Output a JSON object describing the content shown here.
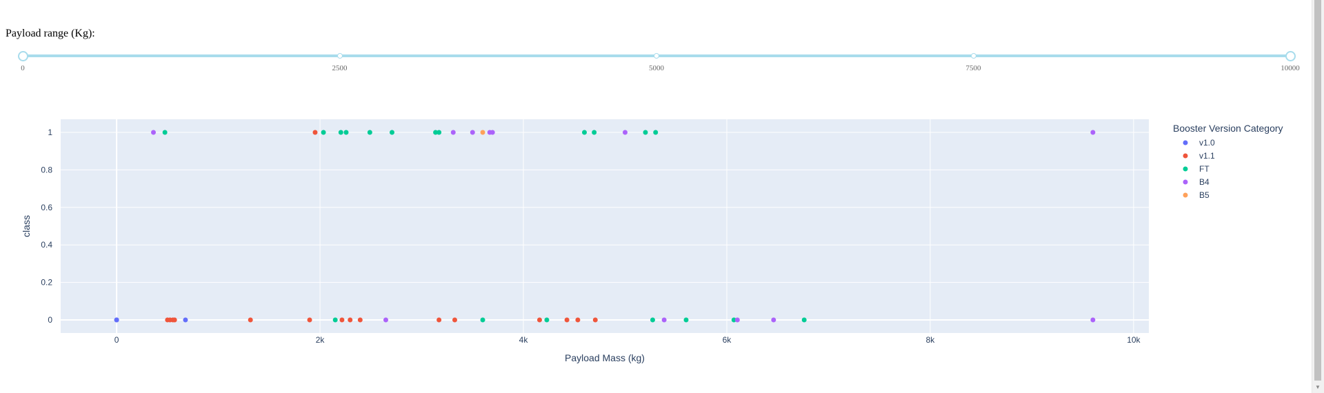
{
  "slider": {
    "label": "Payload range (Kg):",
    "min": 0,
    "max": 10000,
    "value_low": 0,
    "value_high": 10000,
    "marks": [
      "0",
      "2500",
      "5000",
      "7500",
      "10000"
    ]
  },
  "chart_data": {
    "type": "scatter",
    "xlabel": "Payload Mass (kg)",
    "ylabel": "class",
    "xlim": [
      -550,
      10150
    ],
    "ylim": [
      -0.07,
      1.07
    ],
    "x_ticks": [
      0,
      2000,
      4000,
      6000,
      8000,
      10000
    ],
    "x_tick_labels": [
      "0",
      "2k",
      "4k",
      "6k",
      "8k",
      "10k"
    ],
    "y_ticks": [
      0,
      0.2,
      0.4,
      0.6,
      0.8,
      1
    ],
    "y_tick_labels": [
      "0",
      "0.2",
      "0.4",
      "0.6",
      "0.8",
      "1"
    ],
    "grid": true,
    "legend_title": "Booster Version Category",
    "legend_position": "right",
    "series": [
      {
        "name": "v1.0",
        "color": "#636efa",
        "x": [
          0,
          0,
          677
        ],
        "y": [
          0,
          0,
          0
        ]
      },
      {
        "name": "v1.1",
        "color": "#ef553b",
        "x": [
          500,
          525,
          553,
          570,
          1316,
          1898,
          1952,
          2216,
          2296,
          2395,
          3170,
          3325,
          4159,
          4428,
          4535,
          4707
        ],
        "y": [
          0,
          0,
          0,
          0,
          0,
          0,
          1,
          0,
          0,
          0,
          0,
          0,
          0,
          0,
          0,
          0
        ]
      },
      {
        "name": "FT",
        "color": "#00cc96",
        "x": [
          475,
          2034,
          2150,
          2205,
          2257,
          2490,
          2708,
          3136,
          3170,
          3600,
          4230,
          4600,
          4696,
          5200,
          5271,
          5300,
          5600,
          6070,
          6761
        ],
        "y": [
          1,
          1,
          0,
          1,
          1,
          1,
          1,
          1,
          1,
          0,
          0,
          1,
          1,
          1,
          0,
          1,
          0,
          0,
          0
        ]
      },
      {
        "name": "B4",
        "color": "#ab63fa",
        "x": [
          362,
          2647,
          3310,
          3500,
          3669,
          3696,
          5000,
          5384,
          6104,
          6460,
          9600,
          9600
        ],
        "y": [
          1,
          0,
          1,
          1,
          1,
          1,
          1,
          0,
          0,
          0,
          1,
          0
        ]
      },
      {
        "name": "B5",
        "color": "#ffa15a",
        "x": [
          3600
        ],
        "y": [
          1
        ]
      }
    ]
  }
}
